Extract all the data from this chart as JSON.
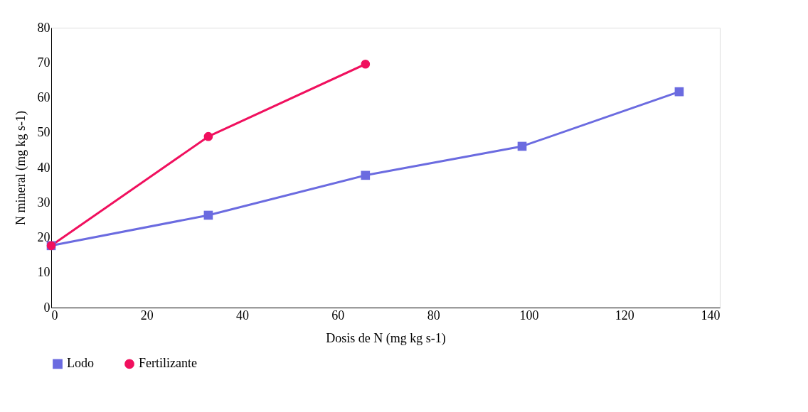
{
  "chart_data": {
    "type": "line",
    "xlabel": "Dosis de N (mg kg s-1)",
    "ylabel": "N mineral (mg kg s-1)",
    "xlim": [
      0,
      140
    ],
    "xticks": [
      0,
      20,
      40,
      60,
      80,
      100,
      120,
      140
    ],
    "ylim": [
      0,
      80
    ],
    "yticks": [
      0,
      10,
      20,
      30,
      40,
      50,
      60,
      70,
      80
    ],
    "grid": false,
    "legend": "bottom",
    "line_style": "solid",
    "series": [
      {
        "name": "Lodo",
        "color": "#6b6be0",
        "marker": "square",
        "x": [
          0,
          32.9,
          65.8,
          98.6,
          131.5
        ],
        "values": [
          17.7,
          26.4,
          37.8,
          46.1,
          61.7
        ]
      },
      {
        "name": "Fertilizante",
        "color": "#f0105e",
        "marker": "circle",
        "x": [
          0,
          32.9,
          65.8
        ],
        "values": [
          17.7,
          48.9,
          69.6
        ]
      }
    ]
  }
}
